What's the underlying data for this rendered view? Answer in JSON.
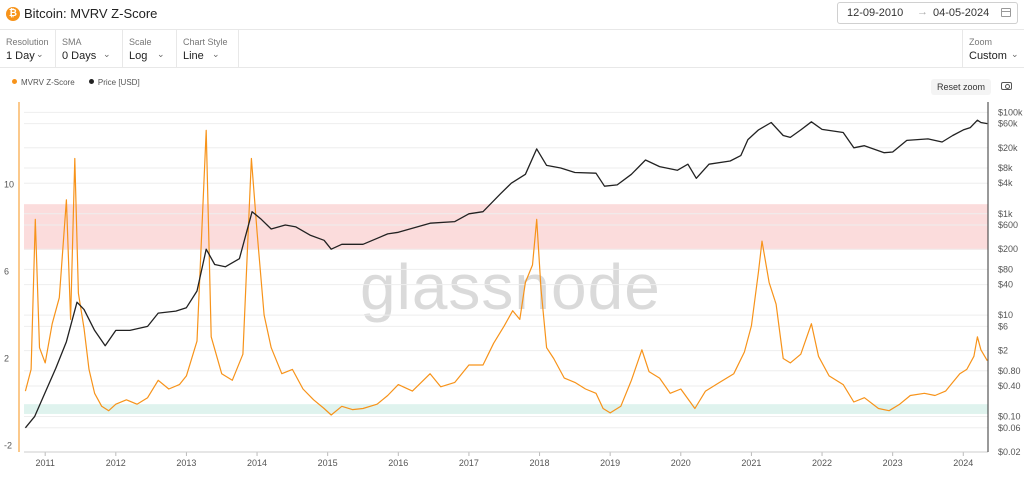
{
  "header": {
    "logo_glyph": "₿",
    "title": "Bitcoin: MVRV Z-Score",
    "date_from": "12-09-2010",
    "date_arrow": "→",
    "date_to": "04-05-2024"
  },
  "controls": {
    "resolution": {
      "label": "Resolution",
      "value": "1 Day"
    },
    "sma": {
      "label": "SMA",
      "value": "0 Days"
    },
    "scale": {
      "label": "Scale",
      "value": "Log"
    },
    "chart_style": {
      "label": "Chart Style",
      "value": "Line"
    },
    "zoom": {
      "label": "Zoom",
      "value": "Custom"
    }
  },
  "reset_zoom": "Reset zoom",
  "watermark": "glassnode",
  "icons": {
    "calendar": "calendar-icon",
    "camera": "camera-icon",
    "chevron": "chevron-down-icon",
    "logo": "bitcoin-logo-icon"
  },
  "colors": {
    "zscore": "#f7931a",
    "price": "#222222",
    "red_band": "#fbdcdc",
    "green_band": "#dff3ee"
  },
  "chart_data": {
    "type": "line",
    "legend": [
      "MVRV Z-Score",
      "Price [USD]"
    ],
    "x_ticks": [
      "2011",
      "2012",
      "2013",
      "2014",
      "2015",
      "2016",
      "2017",
      "2018",
      "2019",
      "2020",
      "2021",
      "2022",
      "2023",
      "2024"
    ],
    "x_range": [
      2010.7,
      2024.35
    ],
    "y_left": {
      "ticks": [
        "10",
        "6",
        "2",
        "-2"
      ],
      "values": [
        10,
        6,
        2,
        -2
      ],
      "range": [
        -2.3,
        13.8
      ]
    },
    "y_right": {
      "scale": "log",
      "ticks": [
        "$100k",
        "$60k",
        "$20k",
        "$8k",
        "$4k",
        "$1k",
        "$600",
        "$200",
        "$80",
        "$40",
        "$10",
        "$6",
        "$2",
        "$0.80",
        "$0.40",
        "$0.10",
        "$0.06",
        "$0.02"
      ],
      "values": [
        100000,
        60000,
        20000,
        8000,
        4000,
        1000,
        600,
        200,
        80,
        40,
        10,
        6,
        2,
        0.8,
        0.4,
        0.1,
        0.06,
        0.02
      ],
      "range": [
        0.02,
        160000
      ]
    },
    "bands": [
      {
        "name": "overvalued",
        "y_from": 7,
        "y_to": 9.1,
        "color": "#fbdcdc"
      },
      {
        "name": "undervalued",
        "y_from": -0.1,
        "y_to": -0.55,
        "color": "#dff3ee"
      }
    ],
    "series": [
      {
        "name": "MVRV Z-Score",
        "color": "#f7931a",
        "axis": "left",
        "points": [
          [
            2010.72,
            0.5
          ],
          [
            2010.8,
            1.5
          ],
          [
            2010.86,
            8.4
          ],
          [
            2010.92,
            2.5
          ],
          [
            2011.0,
            1.8
          ],
          [
            2011.1,
            3.6
          ],
          [
            2011.2,
            4.8
          ],
          [
            2011.3,
            9.3
          ],
          [
            2011.36,
            3.8
          ],
          [
            2011.42,
            11.2
          ],
          [
            2011.47,
            5.0
          ],
          [
            2011.55,
            3.4
          ],
          [
            2011.62,
            1.5
          ],
          [
            2011.7,
            0.4
          ],
          [
            2011.8,
            -0.2
          ],
          [
            2011.9,
            -0.4
          ],
          [
            2012.0,
            -0.1
          ],
          [
            2012.15,
            0.1
          ],
          [
            2012.3,
            -0.1
          ],
          [
            2012.45,
            0.2
          ],
          [
            2012.6,
            1.0
          ],
          [
            2012.75,
            0.6
          ],
          [
            2012.9,
            0.8
          ],
          [
            2013.0,
            1.2
          ],
          [
            2013.15,
            2.8
          ],
          [
            2013.28,
            12.5
          ],
          [
            2013.35,
            3.0
          ],
          [
            2013.5,
            1.3
          ],
          [
            2013.65,
            1.0
          ],
          [
            2013.8,
            2.2
          ],
          [
            2013.92,
            11.2
          ],
          [
            2014.0,
            7.8
          ],
          [
            2014.1,
            4.0
          ],
          [
            2014.2,
            2.5
          ],
          [
            2014.35,
            1.3
          ],
          [
            2014.5,
            1.5
          ],
          [
            2014.65,
            0.6
          ],
          [
            2014.8,
            0.1
          ],
          [
            2014.95,
            -0.3
          ],
          [
            2015.05,
            -0.6
          ],
          [
            2015.2,
            -0.2
          ],
          [
            2015.35,
            -0.35
          ],
          [
            2015.5,
            -0.3
          ],
          [
            2015.7,
            -0.1
          ],
          [
            2015.85,
            0.3
          ],
          [
            2016.0,
            0.8
          ],
          [
            2016.2,
            0.5
          ],
          [
            2016.45,
            1.3
          ],
          [
            2016.6,
            0.7
          ],
          [
            2016.8,
            0.9
          ],
          [
            2017.0,
            1.7
          ],
          [
            2017.2,
            1.7
          ],
          [
            2017.35,
            2.7
          ],
          [
            2017.5,
            3.5
          ],
          [
            2017.62,
            4.2
          ],
          [
            2017.72,
            3.8
          ],
          [
            2017.8,
            5.5
          ],
          [
            2017.9,
            6.3
          ],
          [
            2017.96,
            8.4
          ],
          [
            2018.02,
            5.2
          ],
          [
            2018.1,
            2.5
          ],
          [
            2018.2,
            2.0
          ],
          [
            2018.35,
            1.1
          ],
          [
            2018.5,
            0.9
          ],
          [
            2018.65,
            0.6
          ],
          [
            2018.8,
            0.4
          ],
          [
            2018.9,
            -0.3
          ],
          [
            2019.0,
            -0.5
          ],
          [
            2019.15,
            -0.2
          ],
          [
            2019.3,
            1.0
          ],
          [
            2019.45,
            2.4
          ],
          [
            2019.55,
            1.4
          ],
          [
            2019.7,
            1.1
          ],
          [
            2019.85,
            0.4
          ],
          [
            2020.0,
            0.6
          ],
          [
            2020.2,
            -0.3
          ],
          [
            2020.35,
            0.5
          ],
          [
            2020.55,
            0.9
          ],
          [
            2020.75,
            1.3
          ],
          [
            2020.9,
            2.3
          ],
          [
            2021.0,
            3.5
          ],
          [
            2021.1,
            6.0
          ],
          [
            2021.15,
            7.4
          ],
          [
            2021.25,
            5.5
          ],
          [
            2021.35,
            4.5
          ],
          [
            2021.45,
            2.0
          ],
          [
            2021.55,
            1.8
          ],
          [
            2021.7,
            2.2
          ],
          [
            2021.85,
            3.6
          ],
          [
            2021.95,
            2.1
          ],
          [
            2022.1,
            1.2
          ],
          [
            2022.3,
            0.8
          ],
          [
            2022.45,
            0.0
          ],
          [
            2022.6,
            0.2
          ],
          [
            2022.8,
            -0.3
          ],
          [
            2022.95,
            -0.4
          ],
          [
            2023.1,
            -0.1
          ],
          [
            2023.25,
            0.3
          ],
          [
            2023.45,
            0.4
          ],
          [
            2023.6,
            0.3
          ],
          [
            2023.75,
            0.5
          ],
          [
            2023.85,
            0.9
          ],
          [
            2023.95,
            1.3
          ],
          [
            2024.05,
            1.5
          ],
          [
            2024.15,
            2.1
          ],
          [
            2024.2,
            3.0
          ],
          [
            2024.25,
            2.4
          ],
          [
            2024.34,
            1.9
          ]
        ]
      },
      {
        "name": "Price [USD]",
        "color": "#222222",
        "axis": "right",
        "points": [
          [
            2010.72,
            0.06
          ],
          [
            2010.85,
            0.1
          ],
          [
            2011.0,
            0.3
          ],
          [
            2011.15,
            0.9
          ],
          [
            2011.3,
            3
          ],
          [
            2011.45,
            18
          ],
          [
            2011.55,
            13
          ],
          [
            2011.7,
            5
          ],
          [
            2011.85,
            2.5
          ],
          [
            2012.0,
            5
          ],
          [
            2012.2,
            5
          ],
          [
            2012.45,
            6
          ],
          [
            2012.6,
            11
          ],
          [
            2012.85,
            12
          ],
          [
            2013.0,
            14
          ],
          [
            2013.15,
            30
          ],
          [
            2013.28,
            200
          ],
          [
            2013.4,
            100
          ],
          [
            2013.55,
            90
          ],
          [
            2013.75,
            130
          ],
          [
            2013.93,
            1100
          ],
          [
            2014.05,
            800
          ],
          [
            2014.2,
            500
          ],
          [
            2014.4,
            600
          ],
          [
            2014.55,
            550
          ],
          [
            2014.75,
            380
          ],
          [
            2014.95,
            300
          ],
          [
            2015.05,
            200
          ],
          [
            2015.2,
            250
          ],
          [
            2015.5,
            250
          ],
          [
            2015.85,
            400
          ],
          [
            2016.0,
            430
          ],
          [
            2016.45,
            650
          ],
          [
            2016.8,
            700
          ],
          [
            2017.0,
            1000
          ],
          [
            2017.2,
            1100
          ],
          [
            2017.45,
            2500
          ],
          [
            2017.6,
            4000
          ],
          [
            2017.8,
            6000
          ],
          [
            2017.96,
            19000
          ],
          [
            2018.1,
            9000
          ],
          [
            2018.3,
            8000
          ],
          [
            2018.5,
            6500
          ],
          [
            2018.8,
            6300
          ],
          [
            2018.92,
            3500
          ],
          [
            2019.1,
            3700
          ],
          [
            2019.3,
            6000
          ],
          [
            2019.5,
            11500
          ],
          [
            2019.7,
            8500
          ],
          [
            2019.95,
            7200
          ],
          [
            2020.1,
            9500
          ],
          [
            2020.22,
            5000
          ],
          [
            2020.4,
            9500
          ],
          [
            2020.7,
            11000
          ],
          [
            2020.85,
            14000
          ],
          [
            2020.95,
            29000
          ],
          [
            2021.1,
            45000
          ],
          [
            2021.28,
            63000
          ],
          [
            2021.45,
            35000
          ],
          [
            2021.55,
            32000
          ],
          [
            2021.7,
            45000
          ],
          [
            2021.85,
            65000
          ],
          [
            2022.0,
            46000
          ],
          [
            2022.3,
            40000
          ],
          [
            2022.45,
            20000
          ],
          [
            2022.6,
            22000
          ],
          [
            2022.88,
            16000
          ],
          [
            2023.0,
            16500
          ],
          [
            2023.2,
            28000
          ],
          [
            2023.5,
            30000
          ],
          [
            2023.7,
            26000
          ],
          [
            2023.85,
            35000
          ],
          [
            2024.0,
            45000
          ],
          [
            2024.1,
            50000
          ],
          [
            2024.2,
            70000
          ],
          [
            2024.25,
            63000
          ],
          [
            2024.34,
            60000
          ]
        ]
      }
    ]
  }
}
